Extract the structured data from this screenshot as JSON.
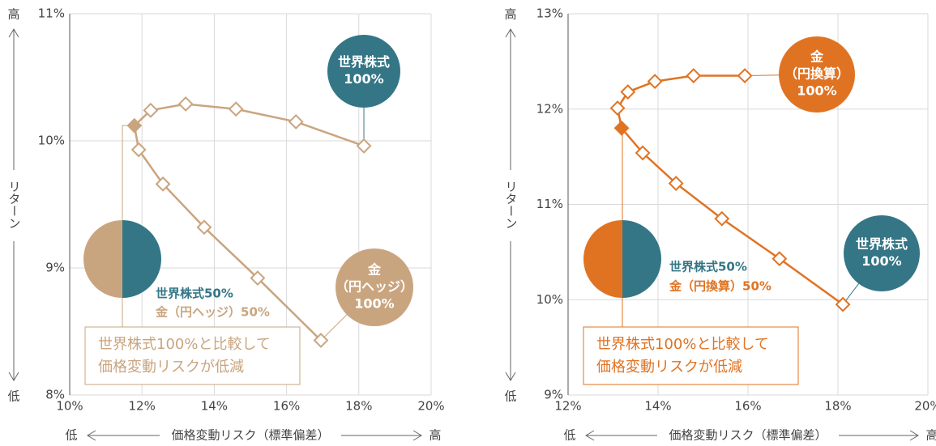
{
  "chart_data": [
    {
      "type": "line",
      "x_label": "価格変動リスク（標準偏差）",
      "x_low": "低",
      "x_high": "高",
      "y_label": "リターン",
      "y_high": "高",
      "y_low": "低",
      "xlim": [
        10,
        20
      ],
      "xticks": [
        {
          "value": 10,
          "label": "10%"
        },
        {
          "value": 12,
          "label": "12%"
        },
        {
          "value": 14,
          "label": "14%"
        },
        {
          "value": 16,
          "label": "16%"
        },
        {
          "value": 18,
          "label": "18%"
        },
        {
          "value": 20,
          "label": "20%"
        }
      ],
      "ylim": [
        8,
        11
      ],
      "yticks": [
        {
          "value": 8,
          "label": "8%"
        },
        {
          "value": 9,
          "label": "9%"
        },
        {
          "value": 10,
          "label": "10%"
        },
        {
          "value": 11,
          "label": "11%"
        }
      ],
      "grid": true,
      "color": "#c9a57f",
      "highlight_index": 5,
      "x": [
        16.95,
        15.2,
        13.72,
        12.58,
        11.91,
        11.79,
        12.24,
        13.21,
        14.6,
        16.26,
        18.14
      ],
      "y": [
        8.43,
        8.92,
        9.32,
        9.66,
        9.93,
        10.12,
        10.24,
        10.29,
        10.25,
        10.15,
        9.96
      ],
      "bubbles": [
        {
          "lines": [
            "世界株式",
            "100%"
          ],
          "color": "#347686"
        },
        {
          "lines": [
            "金",
            "（円ヘッジ）",
            "100%"
          ],
          "color": "#c9a57f"
        }
      ],
      "mix": [
        {
          "label": "世界株式50%",
          "color": "#347686"
        },
        {
          "label": "金（円ヘッジ）50%",
          "color": "#c9a57f"
        }
      ],
      "callout": [
        "世界株式100%と比較して",
        "価格変動リスクが低減"
      ]
    },
    {
      "type": "line",
      "x_label": "価格変動リスク（標準偏差）",
      "x_low": "低",
      "x_high": "高",
      "y_label": "リターン",
      "y_high": "高",
      "y_low": "低",
      "xlim": [
        12,
        20
      ],
      "xticks": [
        {
          "value": 12,
          "label": "12%"
        },
        {
          "value": 14,
          "label": "14%"
        },
        {
          "value": 16,
          "label": "16%"
        },
        {
          "value": 18,
          "label": "18%"
        },
        {
          "value": 20,
          "label": "20%"
        }
      ],
      "ylim": [
        9,
        13
      ],
      "yticks": [
        {
          "value": 9,
          "label": "9%"
        },
        {
          "value": 10,
          "label": "10%"
        },
        {
          "value": 11,
          "label": "11%"
        },
        {
          "value": 12,
          "label": "12%"
        },
        {
          "value": 13,
          "label": "13%"
        }
      ],
      "grid": true,
      "color": "#e07322",
      "highlight_index": 5,
      "x": [
        18.11,
        16.7,
        15.42,
        14.4,
        13.66,
        13.19,
        13.1,
        13.33,
        13.93,
        14.79,
        15.93
      ],
      "y": [
        9.95,
        10.43,
        10.85,
        11.22,
        11.54,
        11.8,
        12.01,
        12.18,
        12.29,
        12.35,
        12.35
      ],
      "bubbles": [
        {
          "lines": [
            "世界株式",
            "100%"
          ],
          "color": "#347686"
        },
        {
          "lines": [
            "金",
            "（円換算）",
            "100%"
          ],
          "color": "#e07322"
        }
      ],
      "mix": [
        {
          "label": "世界株式50%",
          "color": "#347686"
        },
        {
          "label": "金（円換算）50%",
          "color": "#e07322"
        }
      ],
      "callout": [
        "世界株式100%と比較して",
        "価格変動リスクが低減"
      ]
    }
  ]
}
